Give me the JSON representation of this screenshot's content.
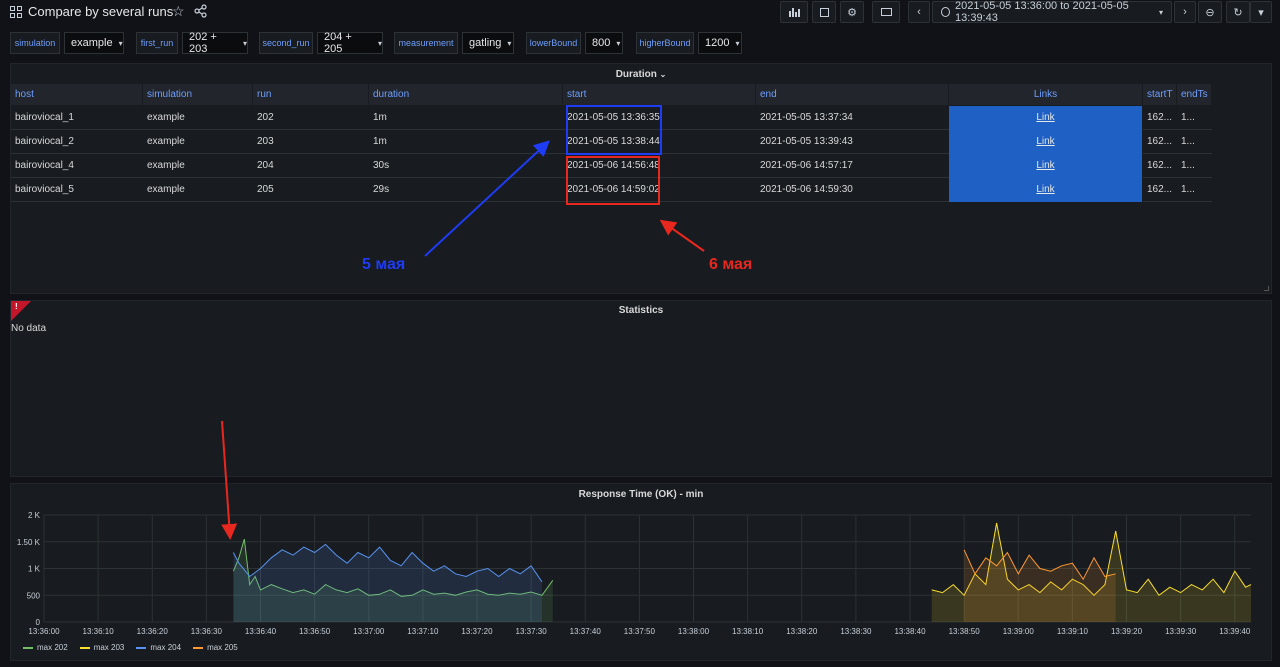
{
  "header": {
    "title": "Compare by several runs",
    "time_range": "2021-05-05 13:36:00 to 2021-05-05 13:39:43"
  },
  "variables": [
    {
      "label": "simulation",
      "value": "example"
    },
    {
      "label": "first_run",
      "value": "202 + 203"
    },
    {
      "label": "second_run",
      "value": "204 + 205"
    },
    {
      "label": "measurement",
      "value": "gatling"
    },
    {
      "label": "lowerBound",
      "value": "800"
    },
    {
      "label": "higherBound",
      "value": "1200"
    }
  ],
  "duration_panel": {
    "title": "Duration",
    "columns": [
      "host",
      "simulation",
      "run",
      "duration",
      "start",
      "end",
      "Links",
      "startT",
      "endTs"
    ],
    "rows": [
      {
        "host": "bairoviocal_1",
        "simulation": "example",
        "run": "202",
        "duration": "1m",
        "start": "2021-05-05 13:36:35",
        "end": "2021-05-05 13:37:34",
        "link": "Link",
        "startT": "162...",
        "endTs": "1..."
      },
      {
        "host": "bairoviocal_2",
        "simulation": "example",
        "run": "203",
        "duration": "1m",
        "start": "2021-05-05 13:38:44",
        "end": "2021-05-05 13:39:43",
        "link": "Link",
        "startT": "162...",
        "endTs": "1..."
      },
      {
        "host": "bairoviocal_4",
        "simulation": "example",
        "run": "204",
        "duration": "30s",
        "start": "2021-05-06 14:56:48",
        "end": "2021-05-06 14:57:17",
        "link": "Link",
        "startT": "162...",
        "endTs": "1..."
      },
      {
        "host": "bairoviocal_5",
        "simulation": "example",
        "run": "205",
        "duration": "29s",
        "start": "2021-05-06 14:59:02",
        "end": "2021-05-06 14:59:30",
        "link": "Link",
        "startT": "162...",
        "endTs": "1..."
      }
    ],
    "annotations": {
      "blue_text": "5 мая",
      "red_text": "6 мая",
      "blue_color": "#1e3cf5",
      "red_color": "#e8281f"
    }
  },
  "statistics_panel": {
    "title": "Statistics",
    "message": "No data"
  },
  "chart_data": {
    "type": "line",
    "title": "Response Time (OK) - min",
    "ylim": [
      0,
      2000
    ],
    "y_ticks": [
      "0",
      "500",
      "1 K",
      "1.50 K",
      "2 K"
    ],
    "x_range_seconds": [
      0,
      223
    ],
    "x_ticks": [
      "13:36:00",
      "13:36:10",
      "13:36:20",
      "13:36:30",
      "13:36:40",
      "13:36:50",
      "13:37:00",
      "13:37:10",
      "13:37:20",
      "13:37:30",
      "13:37:40",
      "13:37:50",
      "13:38:00",
      "13:38:10",
      "13:38:20",
      "13:38:30",
      "13:38:40",
      "13:38:50",
      "13:39:00",
      "13:39:10",
      "13:39:20",
      "13:39:30",
      "13:39:40"
    ],
    "series": [
      {
        "name": "max 202",
        "color": "#73bf69",
        "x": [
          35,
          36,
          37,
          38,
          39,
          40,
          42,
          44,
          46,
          48,
          50,
          52,
          54,
          56,
          58,
          60,
          62,
          64,
          66,
          68,
          70,
          72,
          74,
          76,
          78,
          80,
          82,
          84,
          86,
          88,
          90,
          92,
          94
        ],
        "values": [
          950,
          1200,
          1550,
          700,
          850,
          600,
          700,
          620,
          550,
          600,
          520,
          700,
          600,
          550,
          620,
          500,
          520,
          600,
          480,
          500,
          600,
          520,
          540,
          500,
          560,
          600,
          520,
          500,
          540,
          520,
          560,
          500,
          780
        ]
      },
      {
        "name": "max 203",
        "color": "#fade2a",
        "x": [
          164,
          166,
          168,
          170,
          172,
          174,
          176,
          178,
          180,
          182,
          184,
          186,
          188,
          190,
          192,
          194,
          196,
          198,
          200,
          202,
          204,
          206,
          208,
          210,
          212,
          214,
          216,
          218,
          220,
          222,
          223
        ],
        "values": [
          600,
          550,
          700,
          500,
          900,
          700,
          1850,
          800,
          600,
          700,
          550,
          750,
          600,
          800,
          700,
          500,
          700,
          1700,
          600,
          550,
          800,
          500,
          650,
          550,
          700,
          600,
          800,
          550,
          950,
          650,
          700
        ]
      },
      {
        "name": "max 204",
        "color": "#5794f2",
        "x": [
          35,
          36,
          38,
          40,
          42,
          44,
          46,
          48,
          50,
          52,
          54,
          56,
          58,
          60,
          62,
          64,
          66,
          68,
          70,
          72,
          74,
          76,
          78,
          80,
          82,
          84,
          86,
          88,
          90,
          92
        ],
        "values": [
          1300,
          1100,
          850,
          1000,
          1200,
          1350,
          1250,
          1400,
          1300,
          1450,
          1250,
          1100,
          1300,
          1200,
          1400,
          1150,
          1050,
          1300,
          1100,
          950,
          1050,
          900,
          850,
          950,
          1000,
          850,
          1000,
          900,
          1050,
          750
        ]
      },
      {
        "name": "max 205",
        "color": "#ff9830",
        "x": [
          170,
          172,
          174,
          176,
          178,
          180,
          182,
          184,
          186,
          188,
          190,
          192,
          194,
          196,
          198
        ],
        "values": [
          1350,
          900,
          1200,
          1050,
          1300,
          900,
          1250,
          1000,
          950,
          1050,
          1100,
          800,
          1200,
          850,
          900
        ]
      }
    ],
    "legend": "bottom-left"
  }
}
